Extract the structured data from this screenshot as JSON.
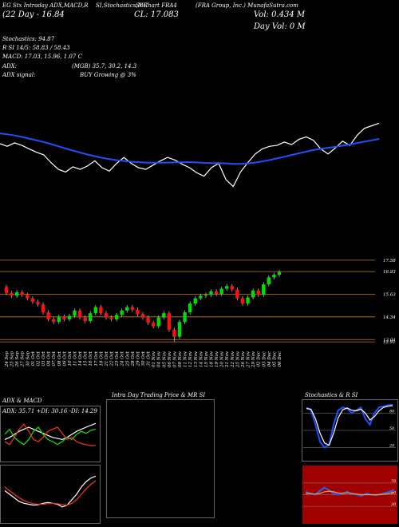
{
  "header": [
    "EG Stx Intraday ADX,MACD,R",
    "SI,Stochastics,MR",
    "SI Chart FRA4",
    "(FRA Group, Inc.) MunafaSutra.com",
    "(22 Day - 16.84",
    "CL: 17.083",
    "Vol: 0.434  M",
    "Day Vol: 0  M",
    "Stochastics: 94.87",
    "R    SI 14/5: 58.83 / 58.43",
    "MACD: 17.03, 15.96, 1.07 C",
    "ADX:",
    "(MGB) 35.7, 30.2, 14.3",
    "ADX  signal:",
    "BUY Growing @ 3%"
  ],
  "chart_data": [
    {
      "type": "line",
      "ylim": [
        12.9,
        17.1
      ],
      "series": [
        {
          "color": "#1f4fff",
          "values": [
            16.3,
            16.25,
            16.18,
            16.1,
            16.0,
            15.9,
            15.8,
            15.68,
            15.55,
            15.42,
            15.3,
            15.18,
            15.07,
            14.97,
            14.88,
            14.8,
            14.74,
            14.69,
            14.65,
            14.62,
            14.6,
            14.59,
            14.59,
            14.6,
            14.61,
            14.62,
            14.62,
            14.61,
            14.58,
            14.57,
            14.57,
            14.55,
            14.52,
            14.52,
            14.55,
            14.6,
            14.67,
            14.75,
            14.84,
            14.94,
            15.04,
            15.14,
            15.24,
            15.33,
            15.4,
            15.46,
            15.52,
            15.59,
            15.66,
            15.74,
            15.82,
            15.9,
            15.98
          ]
        }
      ]
    },
    {
      "type": "candlestick",
      "categories": [
        "24 Sep",
        "25 Sep",
        "26 Sep",
        "27 Sep",
        "30 Sep",
        "01 Oct",
        "02 Oct",
        "03 Oct",
        "04 Oct",
        "07 Oct",
        "08 Oct",
        "09 Oct",
        "10 Oct",
        "11 Oct",
        "14 Oct",
        "15 Oct",
        "16 Oct",
        "17 Oct",
        "18 Oct",
        "21 Oct",
        "22 Oct",
        "23 Oct",
        "24 Oct",
        "25 Oct",
        "28 Oct",
        "29 Oct",
        "30 Oct",
        "31 Oct",
        "01 Nov",
        "04 Nov",
        "05 Nov",
        "06 Nov",
        "07 Nov",
        "08 Nov",
        "11 Nov",
        "12 Nov",
        "13 Nov",
        "14 Nov",
        "15 Nov",
        "18 Nov",
        "19 Nov",
        "20 Nov",
        "21 Nov",
        "22 Nov",
        "25 Nov",
        "26 Nov",
        "27 Nov",
        "29 Nov",
        "02 Dec",
        "03 Dec",
        "04 Dec",
        "05 Dec",
        "06 Dec"
      ],
      "open": [
        16.05,
        15.7,
        15.55,
        15.75,
        15.6,
        15.4,
        15.2,
        15.05,
        14.6,
        14.2,
        14.05,
        14.35,
        14.2,
        14.4,
        14.7,
        14.3,
        14.1,
        14.55,
        14.9,
        14.55,
        14.3,
        14.2,
        14.45,
        14.7,
        14.9,
        14.75,
        14.5,
        14.3,
        14.0,
        13.8,
        14.3,
        14.55,
        13.6,
        13.2,
        14.05,
        14.6,
        15.1,
        15.4,
        15.55,
        15.6,
        15.8,
        15.65,
        15.95,
        16.1,
        15.9,
        15.4,
        15.1,
        15.45,
        15.85,
        15.6,
        16.2,
        16.6,
        16.75
      ],
      "high": [
        16.17,
        15.82,
        15.87,
        15.87,
        15.72,
        15.52,
        15.32,
        15.17,
        14.72,
        14.32,
        14.47,
        14.47,
        14.52,
        14.82,
        14.82,
        14.42,
        14.67,
        15.02,
        15.02,
        14.67,
        14.42,
        14.57,
        14.82,
        15.02,
        15.02,
        14.87,
        14.62,
        14.42,
        14.12,
        14.42,
        14.67,
        14.67,
        13.72,
        14.17,
        14.72,
        15.22,
        15.52,
        15.67,
        15.72,
        15.92,
        15.92,
        16.07,
        16.22,
        16.22,
        16.02,
        15.52,
        15.57,
        15.97,
        15.97,
        16.32,
        16.72,
        16.87,
        17.02
      ],
      "low": [
        15.58,
        15.43,
        15.43,
        15.48,
        15.28,
        15.08,
        14.93,
        14.48,
        14.08,
        13.93,
        13.93,
        14.08,
        14.08,
        14.28,
        14.18,
        13.98,
        13.98,
        14.43,
        14.43,
        14.18,
        14.08,
        14.08,
        14.33,
        14.58,
        14.63,
        14.38,
        14.18,
        13.88,
        13.68,
        13.68,
        14.18,
        13.48,
        12.91,
        13.08,
        13.93,
        14.48,
        14.98,
        15.28,
        15.43,
        15.48,
        15.53,
        15.53,
        15.83,
        15.78,
        15.28,
        14.98,
        14.98,
        15.33,
        15.48,
        15.48,
        16.08,
        16.48,
        16.63
      ],
      "close": [
        15.7,
        15.55,
        15.75,
        15.6,
        15.4,
        15.2,
        15.05,
        14.6,
        14.2,
        14.05,
        14.35,
        14.2,
        14.4,
        14.7,
        14.3,
        14.1,
        14.55,
        14.9,
        14.55,
        14.3,
        14.2,
        14.45,
        14.7,
        14.9,
        14.75,
        14.5,
        14.3,
        14.0,
        13.8,
        14.3,
        14.55,
        13.6,
        13.2,
        14.05,
        14.6,
        15.1,
        15.4,
        15.55,
        15.6,
        15.8,
        15.65,
        15.95,
        16.1,
        15.9,
        15.4,
        15.1,
        15.45,
        15.85,
        15.6,
        16.2,
        16.6,
        16.75,
        16.9
      ],
      "ylim": [
        12.55,
        17.85
      ],
      "yticks": [
        17.58,
        16.93,
        15.63,
        14.34,
        13.04,
        12.91
      ],
      "up_color": "#00dd00",
      "down_color": "#ff1010",
      "grid_color": "#c87a1e",
      "line_color": "#ffffff"
    },
    {
      "type": "line",
      "title": "ADX  & MACD",
      "subtitle": "ADX: 35.71  +DI: 30.16  -DI: 14.29",
      "ylim": [
        0,
        50
      ],
      "series": [
        {
          "color": "#ffffff",
          "values": [
            20,
            22,
            25,
            28,
            30,
            32,
            30,
            28,
            26,
            24,
            22,
            21,
            20,
            22,
            25,
            28,
            30,
            32,
            34,
            35.71
          ]
        },
        {
          "color": "#00ee00",
          "values": [
            25,
            30,
            22,
            18,
            15,
            20,
            28,
            32,
            25,
            20,
            18,
            15,
            18,
            22,
            20,
            25,
            28,
            26,
            29,
            30.16
          ]
        },
        {
          "color": "#ff3020",
          "values": [
            18,
            15,
            22,
            30,
            35,
            28,
            20,
            18,
            22,
            28,
            30,
            32,
            26,
            20,
            22,
            18,
            16,
            15,
            14,
            14.29
          ]
        }
      ]
    },
    {
      "type": "line",
      "ylim": [
        13.5,
        16.5
      ],
      "series": [
        {
          "color": "#ffffff",
          "values": [
            15.2,
            15.0,
            14.8,
            14.6,
            14.5,
            14.45,
            14.4,
            14.42,
            14.5,
            14.55,
            14.5,
            14.45,
            14.3,
            14.4,
            14.7,
            15.0,
            15.4,
            15.7,
            15.9,
            16.0
          ]
        },
        {
          "color": "#ff3020",
          "values": [
            15.4,
            15.2,
            15.0,
            14.8,
            14.65,
            14.55,
            14.48,
            14.44,
            14.45,
            14.48,
            14.5,
            14.48,
            14.42,
            14.4,
            14.5,
            14.7,
            15.0,
            15.3,
            15.55,
            15.75
          ]
        }
      ]
    },
    {
      "type": "empty",
      "title": "Intra  Day Trading Price  & MR     SI"
    },
    {
      "type": "line",
      "title": "Stochastics & R     SI",
      "ylim": [
        0,
        100
      ],
      "yticks": [
        20,
        50,
        80
      ],
      "series": [
        {
          "color": "#1f4fff",
          "values": [
            90,
            85,
            60,
            30,
            20,
            25,
            60,
            85,
            90,
            88,
            80,
            85,
            90,
            70,
            60,
            80,
            90,
            92,
            94,
            94.87
          ]
        },
        {
          "color": "#ffffff",
          "values": [
            88,
            87,
            70,
            45,
            28,
            24,
            45,
            72,
            86,
            89,
            85,
            84,
            87,
            80,
            68,
            74,
            84,
            90,
            92,
            93
          ]
        }
      ]
    },
    {
      "type": "line",
      "ylim": [
        0,
        100
      ],
      "yticks": [
        30,
        50,
        70
      ],
      "background": "#a00000",
      "series": [
        {
          "color": "#2a5cff",
          "values": [
            55,
            52,
            50,
            56,
            62,
            58,
            52,
            50,
            53,
            55,
            51,
            50,
            48,
            52,
            50,
            49,
            51,
            53,
            55,
            58.43
          ]
        },
        {
          "color": "#f0a030",
          "values": [
            52,
            52,
            51,
            52,
            55,
            56,
            55,
            53,
            52,
            53,
            52,
            51,
            50,
            50,
            50,
            50,
            50,
            51,
            52,
            54
          ]
        }
      ]
    }
  ]
}
